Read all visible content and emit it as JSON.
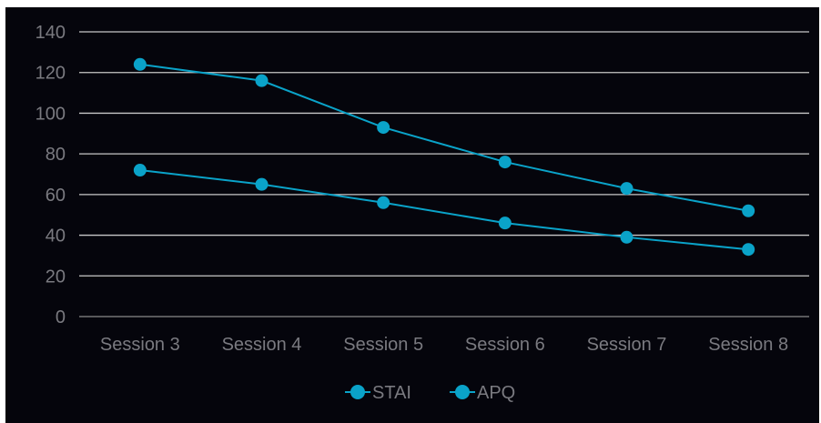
{
  "chart_data": {
    "type": "line",
    "categories": [
      "Session 3",
      "Session 4",
      "Session 5",
      "Session 6",
      "Session 7",
      "Session 8"
    ],
    "series": [
      {
        "name": "STAI",
        "values": [
          124,
          116,
          93,
          76,
          63,
          52
        ]
      },
      {
        "name": "APQ",
        "values": [
          72,
          65,
          56,
          46,
          39,
          33
        ]
      }
    ],
    "ylim": [
      0,
      140
    ],
    "yticks": [
      0,
      20,
      40,
      60,
      80,
      100,
      120,
      140
    ],
    "grid": true,
    "legend_position": "bottom",
    "colors": {
      "background": "#05050c",
      "gridline": "#c8c8c8",
      "axis_line": "#8a8a8a",
      "series": [
        "#0aa3c9",
        "#0aa3c9"
      ],
      "text": "#7a7a80"
    }
  }
}
